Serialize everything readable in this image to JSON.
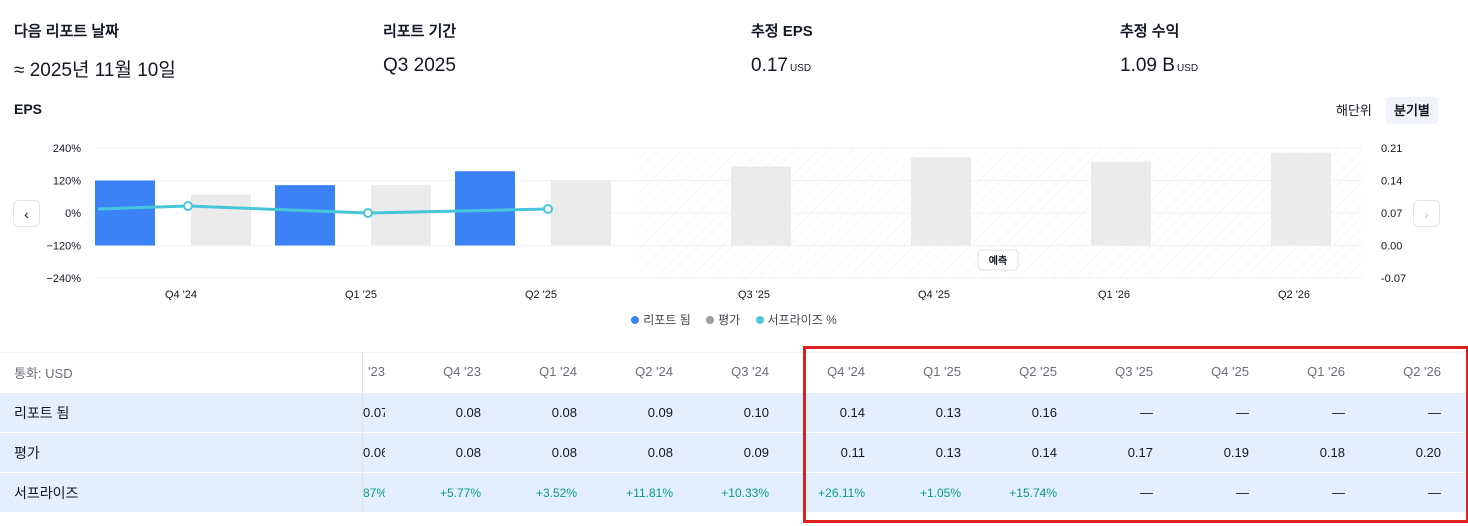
{
  "stats": [
    {
      "label": "다음 리포트 날짜",
      "value": "≈ 2025년 11월 10일",
      "unit": ""
    },
    {
      "label": "리포트 기간",
      "value": "Q3 2025",
      "unit": ""
    },
    {
      "label": "추정 EPS",
      "value": "0.17",
      "unit": "USD"
    },
    {
      "label": "추정 수익",
      "value": "1.09 B",
      "unit": "USD"
    }
  ],
  "section_title": "EPS",
  "period_toggle": {
    "annual": "해단위",
    "quarterly": "분기별",
    "selected": "quarterly"
  },
  "nav": {
    "prev": "‹",
    "next": "›"
  },
  "forecast_label": "예측",
  "legend": [
    {
      "label": "리포트 됨",
      "color": "#3b82f6"
    },
    {
      "label": "평가",
      "color": "#9e9e9e"
    },
    {
      "label": "서프라이즈 %",
      "color": "#47c6d9"
    }
  ],
  "chart_data": {
    "type": "bar",
    "categories": [
      "Q4 '24",
      "Q1 '25",
      "Q2 '25",
      "Q3 '25",
      "Q4 '25",
      "Q1 '26",
      "Q2 '26"
    ],
    "series": [
      {
        "name": "리포트 됨",
        "values": [
          0.14,
          0.13,
          0.16,
          null,
          null,
          null,
          null
        ],
        "color": "#3b82f6"
      },
      {
        "name": "평가",
        "values": [
          0.11,
          0.13,
          0.14,
          0.17,
          0.19,
          0.18,
          0.2
        ],
        "color": "#ebebeb"
      },
      {
        "name": "서프라이즈 %",
        "values": [
          26.11,
          1.05,
          15.74,
          null,
          null,
          null,
          null
        ],
        "color": "#47c6d9",
        "type": "line"
      }
    ],
    "left_axis": {
      "ticks": [
        "240%",
        "120%",
        "0%",
        "−120%",
        "−240%"
      ],
      "range": [
        -240,
        240
      ]
    },
    "right_axis": {
      "ticks": [
        "0.21",
        "0.14",
        "0.07",
        "0.00",
        "-0.07"
      ],
      "range": [
        -0.07,
        0.21
      ]
    },
    "forecast_start_index": 3,
    "grid": true
  },
  "table": {
    "currency_label": "통화: USD",
    "columns": [
      "'23",
      "Q4 '23",
      "Q1 '24",
      "Q2 '24",
      "Q3 '24",
      "Q4 '24",
      "Q1 '25",
      "Q2 '25",
      "Q3 '25",
      "Q4 '25",
      "Q1 '26",
      "Q2 '26"
    ],
    "rows": [
      {
        "label": "리포트 됨",
        "values": [
          "0.07",
          "0.08",
          "0.08",
          "0.09",
          "0.10",
          "0.14",
          "0.13",
          "0.16",
          "—",
          "—",
          "—",
          "—"
        ]
      },
      {
        "label": "평가",
        "values": [
          "0.06",
          "0.08",
          "0.08",
          "0.08",
          "0.09",
          "0.11",
          "0.13",
          "0.14",
          "0.17",
          "0.19",
          "0.18",
          "0.20"
        ]
      },
      {
        "label": "서프라이즈",
        "values": [
          "87%",
          "+5.77%",
          "+3.52%",
          "+11.81%",
          "+10.33%",
          "+26.11%",
          "+1.05%",
          "+15.74%",
          "—",
          "—",
          "—",
          "—"
        ]
      }
    ]
  }
}
